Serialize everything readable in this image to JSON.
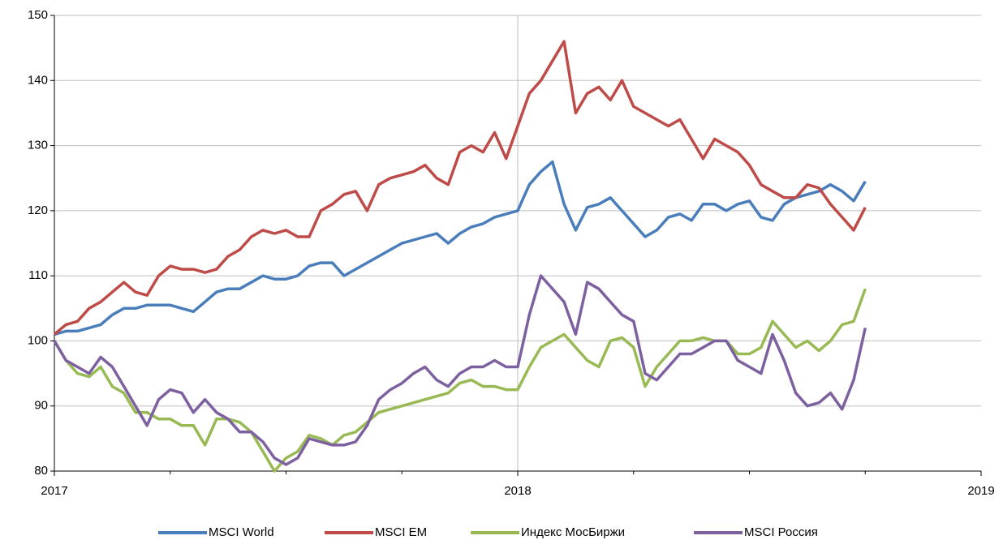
{
  "chart_data": {
    "type": "line",
    "x": [
      2017,
      2017.025,
      2017.05,
      2017.075,
      2017.1,
      2017.125,
      2017.15,
      2017.175,
      2017.2,
      2017.225,
      2017.25,
      2017.275,
      2017.3,
      2017.325,
      2017.35,
      2017.375,
      2017.4,
      2017.425,
      2017.45,
      2017.475,
      2017.5,
      2017.525,
      2017.55,
      2017.575,
      2017.6,
      2017.625,
      2017.65,
      2017.675,
      2017.7,
      2017.725,
      2017.75,
      2017.775,
      2017.8,
      2017.825,
      2017.85,
      2017.875,
      2017.9,
      2017.925,
      2017.95,
      2017.975,
      2018,
      2018.025,
      2018.05,
      2018.075,
      2018.1,
      2018.125,
      2018.15,
      2018.175,
      2018.2,
      2018.225,
      2018.25,
      2018.275,
      2018.3,
      2018.325,
      2018.35,
      2018.375,
      2018.4,
      2018.425,
      2018.45,
      2018.475,
      2018.5,
      2018.525,
      2018.55,
      2018.575,
      2018.6,
      2018.625,
      2018.65,
      2018.675,
      2018.7,
      2018.725,
      2018.75
    ],
    "series": [
      {
        "name": "MSCI World",
        "color": "#4a7ebb",
        "values": [
          101,
          101.5,
          101.5,
          102,
          102.5,
          104,
          105,
          105,
          105.5,
          105.5,
          105.5,
          105,
          104.5,
          106,
          107.5,
          108,
          108,
          109,
          110,
          109.5,
          109.5,
          110,
          111.5,
          112,
          112,
          110,
          111,
          112,
          113,
          114,
          115,
          115.5,
          116,
          116.5,
          115,
          116.5,
          117.5,
          118,
          119,
          119.5,
          120,
          124,
          126,
          127.5,
          121,
          117,
          120.5,
          121,
          122,
          120,
          118,
          116,
          117,
          119,
          119.5,
          118.5,
          121,
          121,
          120,
          121,
          121.5,
          119,
          118.5,
          121,
          122,
          122.5,
          123,
          124,
          123,
          121.5,
          124.5
        ]
      },
      {
        "name": "MSCI EM",
        "color": "#be4b48",
        "values": [
          101,
          102.5,
          103,
          105,
          106,
          107.5,
          109,
          107.5,
          107,
          110,
          111.5,
          111,
          111,
          110.5,
          111,
          113,
          114,
          116,
          117,
          116.5,
          117,
          116,
          116,
          120,
          121,
          122.5,
          123,
          120,
          124,
          125,
          125.5,
          126,
          127,
          125,
          124,
          129,
          130,
          129,
          132,
          128,
          133,
          138,
          140,
          143,
          146,
          135,
          138,
          139,
          137,
          140,
          136,
          135,
          134,
          133,
          134,
          131,
          128,
          131,
          130,
          129,
          127,
          124,
          123,
          122,
          122,
          124,
          123.5,
          121,
          119,
          117,
          120.5
        ]
      },
      {
        "name": "Индекс МосБиржи",
        "color": "#98b954",
        "values": [
          100,
          97,
          95,
          94.5,
          96,
          93,
          92,
          89,
          89,
          88,
          88,
          87,
          87,
          84,
          88,
          88,
          87.5,
          86,
          83,
          80,
          82,
          83,
          85.5,
          85,
          84,
          85.5,
          86,
          87.5,
          89,
          89.5,
          90,
          90.5,
          91,
          91.5,
          92,
          93.5,
          94,
          93,
          93,
          92.5,
          92.5,
          96,
          99,
          100,
          101,
          99,
          97,
          96,
          100,
          100.5,
          99,
          93,
          96,
          98,
          100,
          100,
          100.5,
          100,
          100,
          98,
          98,
          99,
          103,
          101,
          99,
          100,
          98.5,
          100,
          102.5,
          103,
          108
        ]
      },
      {
        "name": "MSCI Россия",
        "color": "#7d60a0",
        "values": [
          100,
          97,
          96,
          95,
          97.5,
          96,
          93,
          90,
          87,
          91,
          92.5,
          92,
          89,
          91,
          89,
          88,
          86,
          86,
          84.5,
          82,
          81,
          82,
          85,
          84.5,
          84,
          84,
          84.5,
          87,
          91,
          92.5,
          93.5,
          95,
          96,
          94,
          93,
          95,
          96,
          96,
          97,
          96,
          96,
          104,
          110,
          108,
          106,
          101,
          109,
          108,
          106,
          104,
          103,
          95,
          94,
          96,
          98,
          98,
          99,
          100,
          100,
          97,
          96,
          95,
          101,
          97,
          92,
          90,
          90.5,
          92,
          89.5,
          94,
          102
        ]
      }
    ],
    "xlim": [
      2017,
      2019
    ],
    "xticks": [
      2017,
      2018,
      2019
    ],
    "ylim": [
      80,
      150
    ],
    "yticks": [
      80,
      90,
      100,
      110,
      120,
      130,
      140,
      150
    ],
    "grid": true,
    "legend": "bottom"
  }
}
